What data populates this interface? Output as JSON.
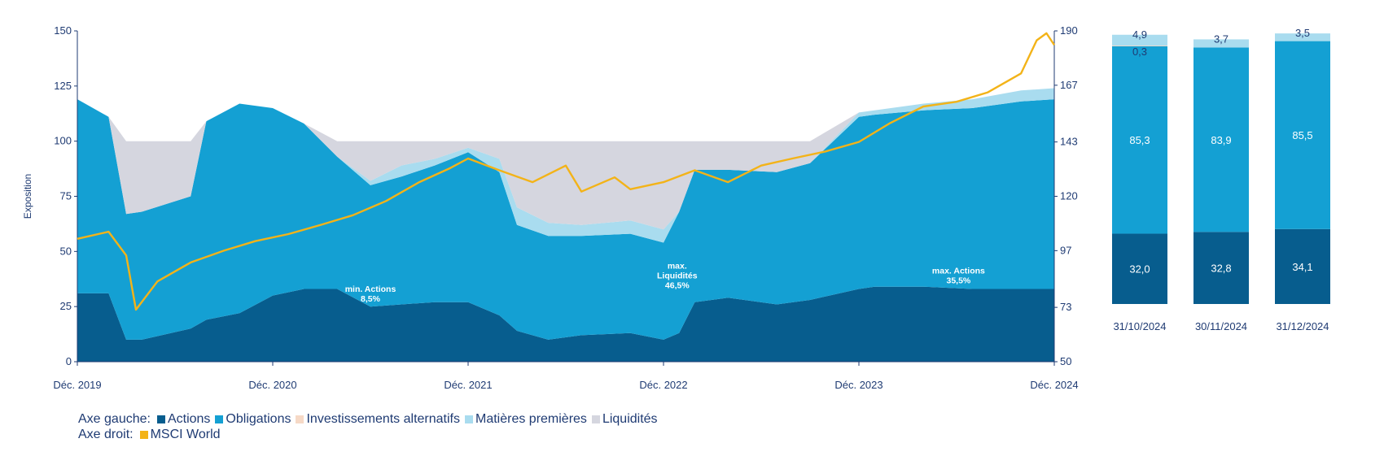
{
  "colors": {
    "actions": "#075d8e",
    "obligations": "#14a0d3",
    "alternatifs": "#f6d9c6",
    "matieres": "#a9dcef",
    "liquidites": "#d5d6df",
    "msci": "#f3b318",
    "axis": "#1f3b73"
  },
  "chart_data": [
    {
      "type": "area",
      "ylabel": "Exposition",
      "y_left_range": [
        0,
        150
      ],
      "y_left_ticks": [
        "0",
        "25",
        "50",
        "75",
        "100",
        "125",
        "150"
      ],
      "y_right_range": [
        50,
        190
      ],
      "y_right_ticks": [
        "50",
        "73",
        "97",
        "120",
        "143",
        "167",
        "190"
      ],
      "x_range": [
        2019.92,
        2024.92
      ],
      "x_ticks": [
        {
          "x": 2019.92,
          "label": "Déc. 2019"
        },
        {
          "x": 2020.92,
          "label": "Déc. 2020"
        },
        {
          "x": 2021.92,
          "label": "Déc. 2021"
        },
        {
          "x": 2022.92,
          "label": "Déc. 2022"
        },
        {
          "x": 2023.92,
          "label": "Déc. 2023"
        },
        {
          "x": 2024.92,
          "label": "Déc. 2024"
        }
      ],
      "series_stack_order": [
        "actions",
        "obligations",
        "alternatifs",
        "matieres",
        "liquidites"
      ],
      "x": [
        2019.92,
        2020.08,
        2020.17,
        2020.25,
        2020.5,
        2020.58,
        2020.75,
        2020.92,
        2021.08,
        2021.25,
        2021.42,
        2021.58,
        2021.75,
        2021.92,
        2022.08,
        2022.17,
        2022.33,
        2022.5,
        2022.75,
        2022.92,
        2023.0,
        2023.08,
        2023.25,
        2023.5,
        2023.67,
        2023.92,
        2024.0,
        2024.25,
        2024.5,
        2024.75,
        2024.92
      ],
      "series": [
        {
          "key": "actions",
          "name": "Actions",
          "values": [
            31,
            31,
            10,
            10,
            15,
            19,
            22,
            30,
            33,
            33,
            25,
            26,
            27,
            27,
            21,
            14,
            10,
            12,
            13,
            10,
            13,
            27,
            29,
            26,
            28,
            33,
            34,
            34,
            33,
            33,
            33
          ]
        },
        {
          "key": "obligations",
          "name": "Obligations",
          "values": [
            88,
            80,
            57,
            58,
            60,
            90,
            95,
            85,
            75,
            60,
            55,
            58,
            62,
            68,
            65,
            48,
            47,
            45,
            45,
            44,
            55,
            60,
            58,
            60,
            62,
            78,
            78,
            80,
            82,
            85,
            86
          ]
        },
        {
          "key": "alternatifs",
          "name": "Investissements alternatifs",
          "values": [
            0,
            0,
            0,
            0,
            0,
            0,
            0,
            0,
            0,
            0,
            0,
            0,
            0,
            0,
            0,
            0,
            0,
            0,
            0,
            0,
            0,
            0,
            0,
            0,
            0,
            0,
            0,
            0,
            0,
            0,
            0
          ]
        },
        {
          "key": "matieres",
          "name": "Matières premières",
          "values": [
            0,
            0,
            0,
            0,
            0,
            0,
            0,
            0,
            0,
            0,
            2,
            5,
            3,
            2,
            6,
            8,
            6,
            5,
            6,
            6,
            0,
            0,
            0,
            0,
            0,
            2,
            2,
            3,
            4,
            5,
            5
          ]
        },
        {
          "key": "liquidites",
          "name": "Liquidités",
          "values": [
            0,
            0,
            33,
            32,
            25,
            0,
            0,
            0,
            0,
            7,
            18,
            11,
            8,
            3,
            8,
            30,
            37,
            38,
            36,
            40,
            32,
            13,
            13,
            14,
            10,
            0,
            0,
            0,
            0,
            0,
            0
          ]
        }
      ],
      "msci_world": {
        "name": "MSCI World",
        "axis": "right",
        "x": [
          2019.92,
          2020.08,
          2020.17,
          2020.22,
          2020.33,
          2020.5,
          2020.67,
          2020.83,
          2021.0,
          2021.17,
          2021.33,
          2021.5,
          2021.67,
          2021.83,
          2021.92,
          2022.08,
          2022.25,
          2022.42,
          2022.5,
          2022.67,
          2022.75,
          2022.92,
          2023.08,
          2023.25,
          2023.42,
          2023.58,
          2023.75,
          2023.92,
          2024.08,
          2024.25,
          2024.42,
          2024.58,
          2024.75,
          2024.83,
          2024.88,
          2024.92
        ],
        "values": [
          102,
          105,
          95,
          72,
          84,
          92,
          97,
          101,
          104,
          108,
          112,
          118,
          126,
          132,
          136,
          131,
          126,
          133,
          122,
          128,
          123,
          126,
          131,
          126,
          133,
          136,
          139,
          143,
          151,
          158,
          160,
          164,
          172,
          186,
          189,
          184
        ]
      },
      "annotations": [
        {
          "x": 2021.42,
          "lines": [
            "min. Actions",
            "8,5%"
          ]
        },
        {
          "x": 2022.99,
          "lines": [
            "max.",
            "Liquidités",
            "46,5%"
          ]
        },
        {
          "x": 2024.43,
          "lines": [
            "max. Actions",
            "35,5%"
          ]
        }
      ]
    },
    {
      "type": "bar",
      "stacked": true,
      "categories": [
        "31/10/2024",
        "30/11/2024",
        "31/12/2024"
      ],
      "series": [
        {
          "key": "actions",
          "name": "Actions",
          "values": [
            32.0,
            32.8,
            34.1
          ],
          "labels": [
            "32,0",
            "32,8",
            "34,1"
          ]
        },
        {
          "key": "obligations",
          "name": "Obligations",
          "values": [
            85.3,
            83.9,
            85.5
          ],
          "labels": [
            "85,3",
            "83,9",
            "85,5"
          ]
        },
        {
          "key": "alternatifs",
          "name": "Investissements alternatifs",
          "values": [
            0.3,
            0,
            0
          ],
          "labels": [
            "0,3",
            "",
            ""
          ]
        },
        {
          "key": "matieres",
          "name": "Matières premières",
          "values": [
            4.9,
            3.7,
            3.5
          ],
          "labels": [
            "4,9",
            "3,7",
            "3,5"
          ]
        }
      ],
      "ylim": [
        0,
        130
      ]
    }
  ],
  "legend": {
    "left_title": "Axe gauche:",
    "left_items": [
      "Actions",
      "Obligations",
      "Investissements alternatifs",
      "Matières premières",
      "Liquidités"
    ],
    "right_title": "Axe droit:",
    "right_items": [
      "MSCI World"
    ]
  }
}
